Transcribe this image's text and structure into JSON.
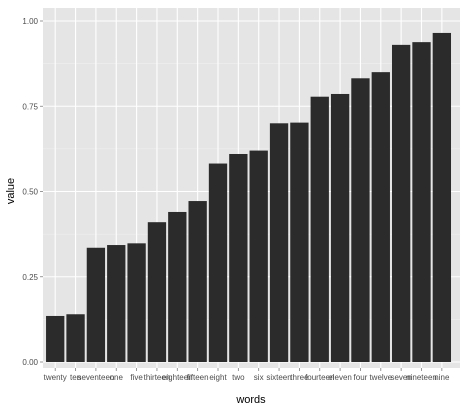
{
  "chart_data": {
    "type": "bar",
    "xlabel": "words",
    "ylabel": "value",
    "ylim": [
      0,
      1
    ],
    "y_ticks": [
      0.0,
      0.25,
      0.5,
      0.75,
      1.0
    ],
    "y_tick_labels": [
      "0.00",
      "0.25",
      "0.50",
      "0.75",
      "1.00"
    ],
    "grid": true,
    "categories": [
      "twenty",
      "ten",
      "seventeen",
      "one",
      "five",
      "thirteen",
      "eighteen",
      "fifteen",
      "eight",
      "two",
      "six",
      "sixteen",
      "three",
      "fourteen",
      "eleven",
      "four",
      "twelve",
      "seven",
      "nineteen",
      "nine"
    ],
    "values": [
      0.135,
      0.14,
      0.335,
      0.343,
      0.348,
      0.41,
      0.44,
      0.472,
      0.582,
      0.61,
      0.62,
      0.7,
      0.702,
      0.778,
      0.786,
      0.832,
      0.85,
      0.93,
      0.938,
      0.965
    ],
    "colors": {
      "panel": "#e5e5e5",
      "grid_major": "#ffffff",
      "grid_minor": "#f2f2f2",
      "bar": "#2b2b2b",
      "tick": "#7f7f7f"
    }
  }
}
